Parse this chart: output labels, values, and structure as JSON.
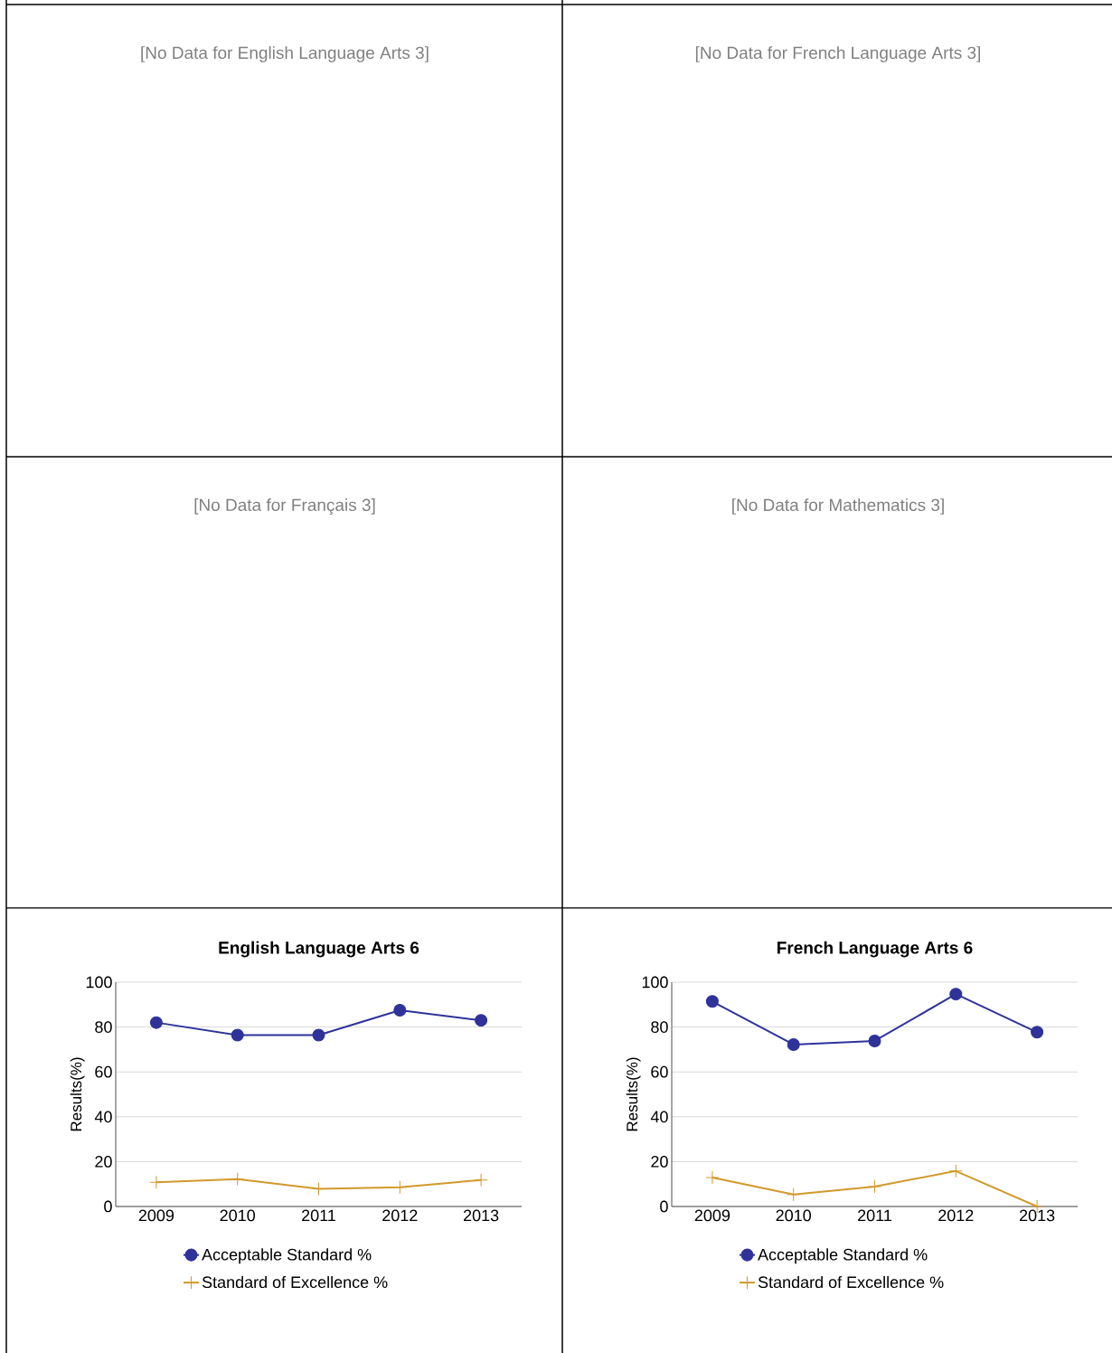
{
  "chart_data": [
    {
      "type": "other",
      "title": "[No Data for English Language Arts 3]"
    },
    {
      "type": "other",
      "title": "[No Data for French Language Arts 3]"
    },
    {
      "type": "other",
      "title": "[No Data for Français 3]"
    },
    {
      "type": "other",
      "title": "[No Data for Mathematics 3]"
    },
    {
      "type": "line",
      "title": "English Language Arts 6",
      "ylabel": "Results(%)",
      "categories": [
        "2009",
        "2010",
        "2011",
        "2012",
        "2013"
      ],
      "ylim": [
        0,
        100
      ],
      "yticks": [
        0,
        20,
        40,
        60,
        80,
        100
      ],
      "grid": "y",
      "legend": "bottom",
      "line_style": "solid",
      "series": [
        {
          "name": "Acceptable Standard %",
          "color": "#2f3399",
          "marker": "circle",
          "values": [
            82.0,
            76.4,
            76.4,
            87.5,
            83.0
          ]
        },
        {
          "name": "Standard of Excellence %",
          "color": "#d09a2c",
          "marker": "cross",
          "values": [
            10.8,
            12.2,
            7.9,
            8.6,
            11.8
          ]
        }
      ]
    },
    {
      "type": "line",
      "title": "French Language Arts 6",
      "ylabel": "Results(%)",
      "categories": [
        "2009",
        "2010",
        "2011",
        "2012",
        "2013"
      ],
      "ylim": [
        0,
        100
      ],
      "yticks": [
        0,
        20,
        40,
        60,
        80,
        100
      ],
      "grid": "y",
      "legend": "bottom",
      "line_style": "solid",
      "series": [
        {
          "name": "Acceptable Standard %",
          "color": "#2f3399",
          "marker": "circle",
          "values": [
            91.4,
            72.2,
            73.8,
            94.7,
            77.7
          ]
        },
        {
          "name": "Standard of Excellence %",
          "color": "#d09a2c",
          "marker": "cross",
          "values": [
            12.9,
            5.3,
            8.9,
            15.8,
            0
          ]
        }
      ]
    }
  ]
}
